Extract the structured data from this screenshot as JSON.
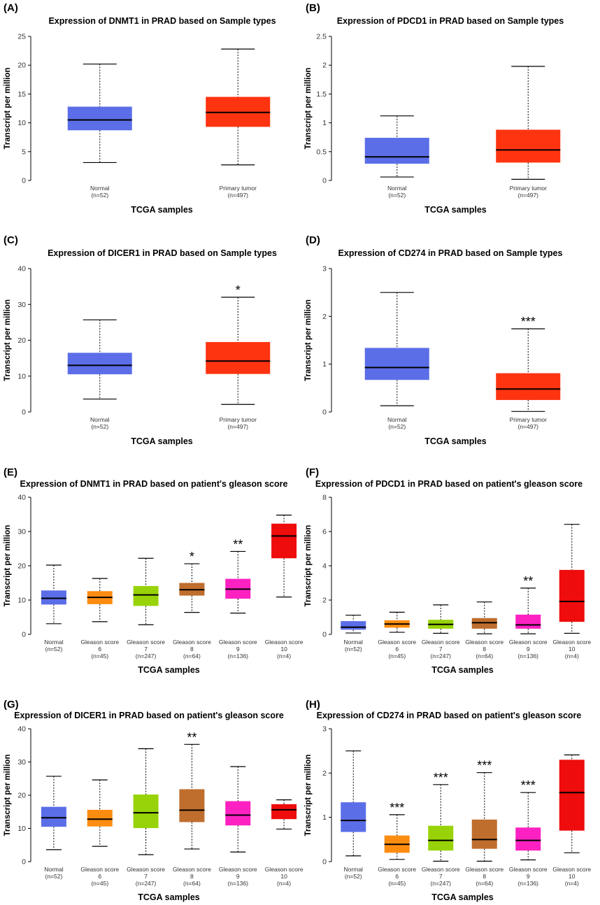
{
  "chart_data": [
    {
      "type": "boxplot",
      "panel": "(A)",
      "title": "Expression of DNMT1 in PRAD based on Sample types",
      "ylabel": "Transcript per million",
      "xlabel": "TCGA samples",
      "ylim": [
        0,
        25
      ],
      "yticks": [
        0,
        5,
        10,
        15,
        20,
        25
      ],
      "groups": [
        {
          "label": "Normal",
          "n": "(n=52)",
          "color": "#5b6ee8",
          "min": 3.1,
          "q1": 8.7,
          "median": 10.5,
          "q3": 12.8,
          "max": 20.2,
          "sig": ""
        },
        {
          "label": "Primary tumor",
          "n": "(n=497)",
          "color": "#fe3310",
          "min": 2.7,
          "q1": 9.3,
          "median": 11.8,
          "q3": 14.5,
          "max": 22.8,
          "sig": ""
        }
      ]
    },
    {
      "type": "boxplot",
      "panel": "(B)",
      "title": "Expression of PDCD1 in PRAD based on Sample types",
      "ylabel": "Transcript per million",
      "xlabel": "TCGA samples",
      "ylim": [
        0,
        2.5
      ],
      "yticks": [
        0,
        0.5,
        1,
        1.5,
        2,
        2.5
      ],
      "groups": [
        {
          "label": "Normal",
          "n": "(n=52)",
          "color": "#5b6ee8",
          "min": 0.06,
          "q1": 0.29,
          "median": 0.41,
          "q3": 0.74,
          "max": 1.12,
          "sig": ""
        },
        {
          "label": "Primary tumor",
          "n": "(n=497)",
          "color": "#fe3310",
          "min": 0.02,
          "q1": 0.31,
          "median": 0.53,
          "q3": 0.88,
          "max": 1.98,
          "sig": ""
        }
      ]
    },
    {
      "type": "boxplot",
      "panel": "(C)",
      "title": "Expression of DICER1 in PRAD based on Sample types",
      "ylabel": "Transcript per million",
      "xlabel": "TCGA samples",
      "ylim": [
        0,
        40
      ],
      "yticks": [
        0,
        10,
        20,
        30,
        40
      ],
      "groups": [
        {
          "label": "Normal",
          "n": "(n=52)",
          "color": "#5b6ee8",
          "min": 3.6,
          "q1": 10.5,
          "median": 13.0,
          "q3": 16.5,
          "max": 25.7,
          "sig": ""
        },
        {
          "label": "Primary tumor",
          "n": "(n=497)",
          "color": "#fe3310",
          "min": 2.1,
          "q1": 10.6,
          "median": 14.2,
          "q3": 19.5,
          "max": 32.0,
          "sig": "*"
        }
      ]
    },
    {
      "type": "boxplot",
      "panel": "(D)",
      "title": "Expression of CD274 in PRAD based on Sample types",
      "ylabel": "Transcript per million",
      "xlabel": "TCGA samples",
      "ylim": [
        0,
        3
      ],
      "yticks": [
        0,
        1,
        2,
        3
      ],
      "groups": [
        {
          "label": "Normal",
          "n": "(n=52)",
          "color": "#5b6ee8",
          "min": 0.13,
          "q1": 0.67,
          "median": 0.93,
          "q3": 1.34,
          "max": 2.5,
          "sig": ""
        },
        {
          "label": "Primary tumor",
          "n": "(n=497)",
          "color": "#fe3310",
          "min": 0.01,
          "q1": 0.25,
          "median": 0.48,
          "q3": 0.81,
          "max": 1.74,
          "sig": "***"
        }
      ]
    },
    {
      "type": "boxplot",
      "panel": "(E)",
      "title": "Expression of DNMT1 in PRAD based on patient's gleason score",
      "ylabel": "Transcript per million",
      "xlabel": "TCGA samples",
      "ylim": [
        0,
        40
      ],
      "yticks": [
        0,
        10,
        20,
        30,
        40
      ],
      "groups": [
        {
          "label": "Normal",
          "label2": "",
          "n": "(n=52)",
          "color": "#5b6ee8",
          "min": 3.1,
          "q1": 8.7,
          "median": 10.5,
          "q3": 12.8,
          "max": 20.2,
          "sig": ""
        },
        {
          "label": "Gleason score",
          "label2": "6",
          "n": "(n=45)",
          "color": "#fd8c11",
          "min": 3.7,
          "q1": 8.8,
          "median": 10.8,
          "q3": 12.6,
          "max": 16.3,
          "sig": ""
        },
        {
          "label": "Gleason score",
          "label2": "7",
          "n": "(n=247)",
          "color": "#98d309",
          "min": 2.8,
          "q1": 8.3,
          "median": 11.5,
          "q3": 14.1,
          "max": 22.2,
          "sig": ""
        },
        {
          "label": "Gleason score",
          "label2": "8",
          "n": "(n=64)",
          "color": "#bf6e2e",
          "min": 6.4,
          "q1": 11.3,
          "median": 13.0,
          "q3": 15.0,
          "max": 20.6,
          "sig": "*"
        },
        {
          "label": "Gleason score",
          "label2": "9",
          "n": "(n=136)",
          "color": "#fd21c2",
          "min": 6.2,
          "q1": 10.4,
          "median": 13.2,
          "q3": 16.2,
          "max": 24.2,
          "sig": "**"
        },
        {
          "label": "Gleason score",
          "label2": "10",
          "n": "(n=4)",
          "color": "#ee0c0c",
          "min": 10.9,
          "q1": 22.2,
          "median": 28.7,
          "q3": 32.3,
          "max": 34.8,
          "sig": ""
        }
      ]
    },
    {
      "type": "boxplot",
      "panel": "(F)",
      "title": "Expression of PDCD1 in PRAD based on patient's gleason score",
      "ylabel": "Transcript per million",
      "xlabel": "TCGA samples",
      "ylim": [
        0,
        8
      ],
      "yticks": [
        0,
        2,
        4,
        6,
        8
      ],
      "groups": [
        {
          "label": "Normal",
          "label2": "",
          "n": "(n=52)",
          "color": "#5b6ee8",
          "min": 0.08,
          "q1": 0.27,
          "median": 0.42,
          "q3": 0.77,
          "max": 1.12,
          "sig": ""
        },
        {
          "label": "Gleason score",
          "label2": "6",
          "n": "(n=45)",
          "color": "#fd8c11",
          "min": 0.12,
          "q1": 0.39,
          "median": 0.6,
          "q3": 0.82,
          "max": 1.29,
          "sig": ""
        },
        {
          "label": "Gleason score",
          "label2": "7",
          "n": "(n=247)",
          "color": "#98d309",
          "min": 0.06,
          "q1": 0.33,
          "median": 0.58,
          "q3": 0.85,
          "max": 1.72,
          "sig": ""
        },
        {
          "label": "Gleason score",
          "label2": "8",
          "n": "(n=64)",
          "color": "#bf6e2e",
          "min": 0.03,
          "q1": 0.33,
          "median": 0.68,
          "q3": 0.95,
          "max": 1.89,
          "sig": ""
        },
        {
          "label": "Gleason score",
          "label2": "9",
          "n": "(n=136)",
          "color": "#fd21c2",
          "min": 0.03,
          "q1": 0.33,
          "median": 0.55,
          "q3": 1.15,
          "max": 2.7,
          "sig": "**"
        },
        {
          "label": "Gleason score",
          "label2": "10",
          "n": "(n=4)",
          "color": "#ee0c0c",
          "min": 0.06,
          "q1": 0.73,
          "median": 1.92,
          "q3": 3.76,
          "max": 6.42,
          "sig": ""
        }
      ]
    },
    {
      "type": "boxplot",
      "panel": "(G)",
      "title": "Expression of DICER1 in PRAD based on patient's gleason score",
      "ylabel": "Transcript per million",
      "xlabel": "TCGA samples",
      "ylim": [
        0,
        40
      ],
      "yticks": [
        0,
        10,
        20,
        30,
        40
      ],
      "groups": [
        {
          "label": "Normal",
          "label2": "",
          "n": "(n=52)",
          "color": "#5b6ee8",
          "min": 3.6,
          "q1": 10.5,
          "median": 13.2,
          "q3": 16.5,
          "max": 25.7,
          "sig": ""
        },
        {
          "label": "Gleason score",
          "label2": "6",
          "n": "(n=45)",
          "color": "#fd8c11",
          "min": 4.6,
          "q1": 10.6,
          "median": 12.8,
          "q3": 15.6,
          "max": 24.6,
          "sig": ""
        },
        {
          "label": "Gleason score",
          "label2": "7",
          "n": "(n=247)",
          "color": "#98d309",
          "min": 2.1,
          "q1": 10.1,
          "median": 14.7,
          "q3": 20.2,
          "max": 34.0,
          "sig": ""
        },
        {
          "label": "Gleason score",
          "label2": "8",
          "n": "(n=64)",
          "color": "#bf6e2e",
          "min": 3.8,
          "q1": 11.9,
          "median": 15.5,
          "q3": 21.8,
          "max": 35.3,
          "sig": "**"
        },
        {
          "label": "Gleason score",
          "label2": "9",
          "n": "(n=136)",
          "color": "#fd21c2",
          "min": 2.9,
          "q1": 10.9,
          "median": 14.0,
          "q3": 18.2,
          "max": 28.6,
          "sig": ""
        },
        {
          "label": "Gleason score",
          "label2": "10",
          "n": "(n=4)",
          "color": "#ee0c0c",
          "min": 9.8,
          "q1": 12.8,
          "median": 15.6,
          "q3": 17.3,
          "max": 18.6,
          "sig": ""
        }
      ]
    },
    {
      "type": "boxplot",
      "panel": "(H)",
      "title": "Expression of CD274 in PRAD based on patient's gleason score",
      "ylabel": "Transcript per million",
      "xlabel": "TCGA samples",
      "ylim": [
        0,
        3
      ],
      "yticks": [
        0,
        1,
        2,
        3
      ],
      "groups": [
        {
          "label": "Normal",
          "label2": "",
          "n": "(n=52)",
          "color": "#5b6ee8",
          "min": 0.13,
          "q1": 0.67,
          "median": 0.93,
          "q3": 1.34,
          "max": 2.5,
          "sig": ""
        },
        {
          "label": "Gleason score",
          "label2": "6",
          "n": "(n=45)",
          "color": "#fd8c11",
          "min": 0.05,
          "q1": 0.2,
          "median": 0.39,
          "q3": 0.59,
          "max": 1.06,
          "sig": "***"
        },
        {
          "label": "Gleason score",
          "label2": "7",
          "n": "(n=247)",
          "color": "#98d309",
          "min": 0.01,
          "q1": 0.25,
          "median": 0.48,
          "q3": 0.81,
          "max": 1.74,
          "sig": "***"
        },
        {
          "label": "Gleason score",
          "label2": "8",
          "n": "(n=64)",
          "color": "#bf6e2e",
          "min": 0.01,
          "q1": 0.29,
          "median": 0.5,
          "q3": 0.95,
          "max": 2.01,
          "sig": "***"
        },
        {
          "label": "Gleason score",
          "label2": "9",
          "n": "(n=136)",
          "color": "#fd21c2",
          "min": 0.04,
          "q1": 0.25,
          "median": 0.48,
          "q3": 0.77,
          "max": 1.56,
          "sig": "***"
        },
        {
          "label": "Gleason score",
          "label2": "10",
          "n": "(n=4)",
          "color": "#ee0c0c",
          "min": 0.2,
          "q1": 0.7,
          "median": 1.56,
          "q3": 2.3,
          "max": 2.41,
          "sig": ""
        }
      ]
    }
  ]
}
